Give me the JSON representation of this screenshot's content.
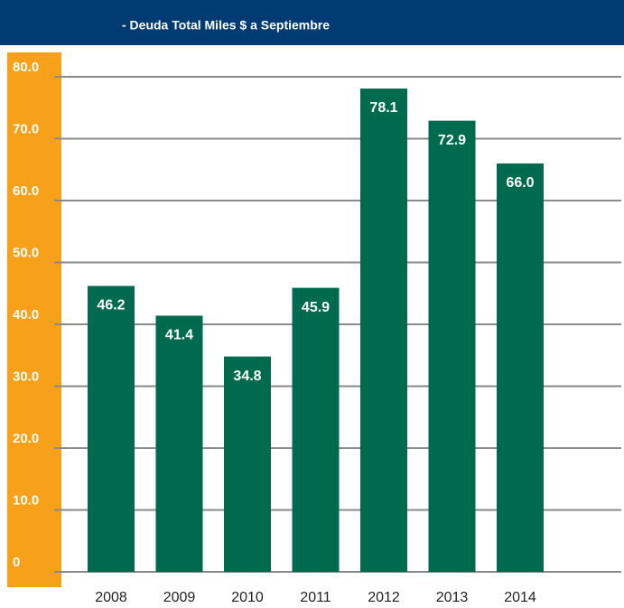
{
  "chart_data": {
    "type": "bar",
    "title": "- Deuda Total Miles $ a  Septiembre",
    "categories": [
      "2008",
      "2009",
      "2010",
      "2011",
      "2012",
      "2013",
      "2014"
    ],
    "values": [
      46.2,
      41.4,
      34.8,
      45.9,
      78.1,
      72.9,
      66.0
    ],
    "value_labels": [
      "46.2",
      "41.4",
      "34.8",
      "45.9",
      "78.1",
      "72.9",
      "66.0"
    ],
    "color": "#006a4e",
    "ylim": [
      0,
      80
    ],
    "yticks": [
      0,
      {
        "value": 10,
        "label": "10.0"
      },
      {
        "value": 20,
        "label": "20.0"
      },
      {
        "value": 30,
        "label": "30.0"
      },
      {
        "value": 40,
        "label": "40.0"
      },
      {
        "value": 50,
        "label": "50.0"
      },
      {
        "value": 60,
        "label": "60.0"
      },
      {
        "value": 70,
        "label": "70.0"
      },
      {
        "value": 80,
        "label": "80.0"
      }
    ],
    "grid": true
  }
}
